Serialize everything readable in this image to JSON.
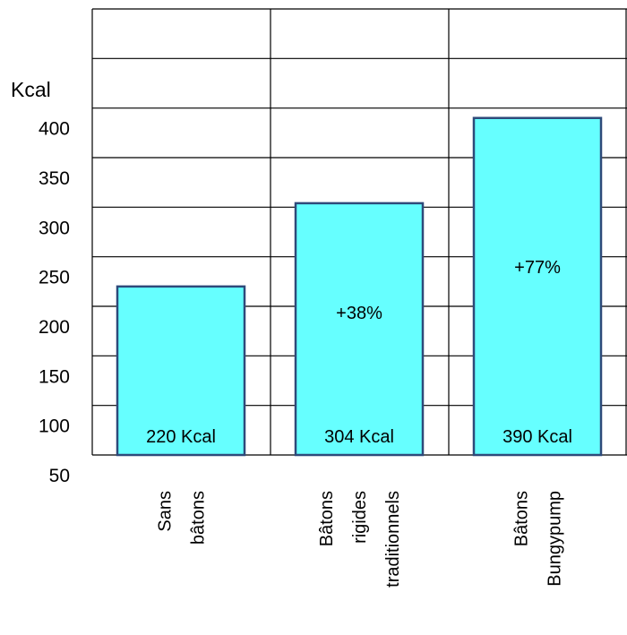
{
  "chart_data": {
    "type": "bar",
    "title": "",
    "xlabel": "",
    "ylabel": "Kcal",
    "categories": [
      [
        "Sans",
        "bâtons"
      ],
      [
        "Bâtons",
        "rigides",
        "traditionnels"
      ],
      [
        "Bâtons",
        "Bungypump"
      ]
    ],
    "values": [
      220,
      304,
      390
    ],
    "value_labels": [
      "220 Kcal",
      "304 Kcal",
      "390 Kcal"
    ],
    "annotations": [
      "",
      "+38%",
      "+77%"
    ],
    "yticks": [
      50,
      100,
      150,
      200,
      250,
      300,
      350,
      400
    ],
    "ylim": [
      50,
      500
    ],
    "grid": true,
    "colors": {
      "bar_fill": "#66ffff",
      "bar_stroke": "#2e4a7a",
      "grid": "#000000"
    }
  }
}
